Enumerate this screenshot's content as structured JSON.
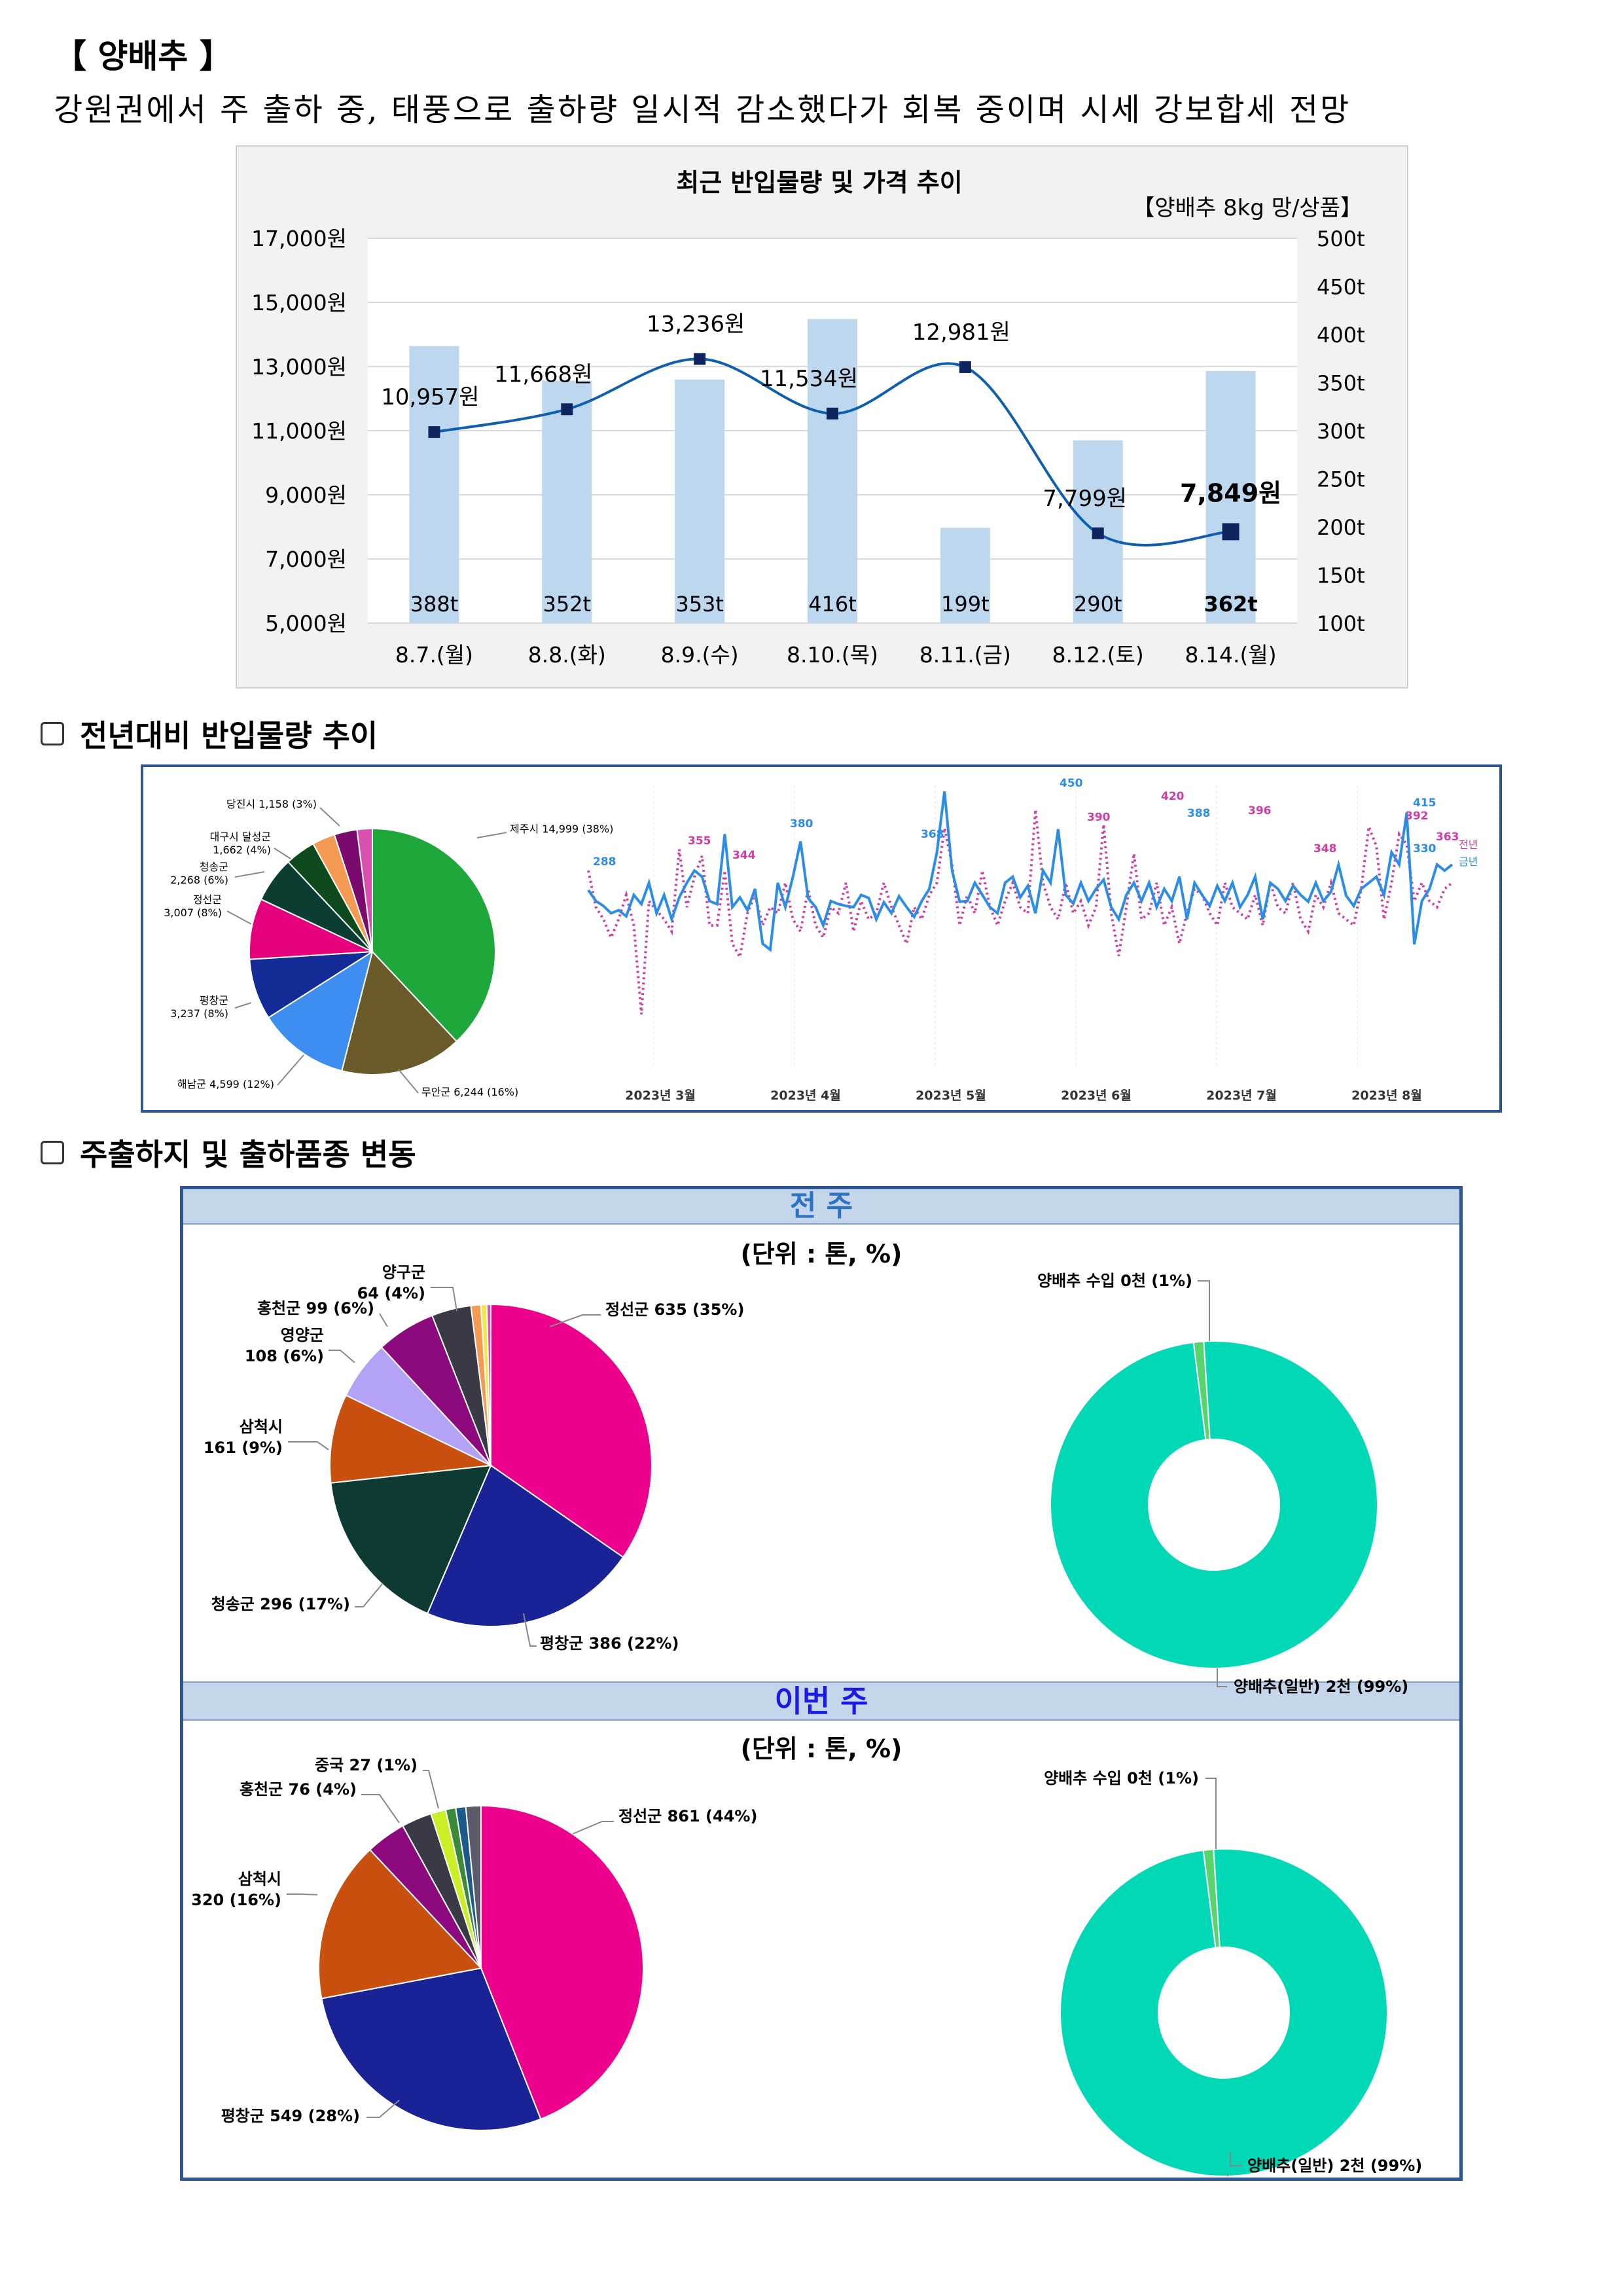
{
  "header": {
    "title": "【 양배추 】",
    "summary": "강원권에서 주 출하 중, 태풍으로 출하량 일시적 감소했다가 회복 중이며 시세 강보합세 전망"
  },
  "chart_data": [
    {
      "type": "bar+line",
      "title": "최근 반입물량 및 가격 추이",
      "subtitle": "【양배추 8kg 망/상품】",
      "categories": [
        "8.7.(월)",
        "8.8.(화)",
        "8.9.(수)",
        "8.10.(목)",
        "8.11.(금)",
        "8.12.(토)",
        "8.14.(월)"
      ],
      "bar_series": {
        "values": [
          388,
          352,
          353,
          416,
          199,
          290,
          362
        ],
        "labels": [
          "388t",
          "352t",
          "353t",
          "416t",
          "199t",
          "290t",
          "362t"
        ],
        "color": "#bdd7ee"
      },
      "line_series": {
        "values": [
          10957,
          11668,
          13236,
          11534,
          12981,
          7799,
          7849
        ],
        "labels": [
          "10,957원",
          "11,668원",
          "13,236원",
          "11,534원",
          "12,981원",
          "7,799원",
          "7,849원"
        ],
        "color": "#0f5fb0",
        "marker_color": "#0f2560"
      },
      "y_left": {
        "range": [
          5000,
          17000
        ],
        "ticks": [
          "17,000원",
          "15,000원",
          "13,000원",
          "11,000원",
          "9,000원",
          "7,000원",
          "5,000원"
        ]
      },
      "y_right": {
        "range": [
          100,
          500
        ],
        "ticks": [
          "500t",
          "450t",
          "400t",
          "350t",
          "300t",
          "250t",
          "200t",
          "150t",
          "100t"
        ]
      }
    },
    {
      "type": "pie",
      "slices": [
        {
          "label": "제주시 14,999 (38%)",
          "value": 38,
          "color": "#1ea83c"
        },
        {
          "label": "무안군 6,244 (16%)",
          "value": 16,
          "color": "#6b5a2a"
        },
        {
          "label": "해남군 4,599 (12%)",
          "value": 12,
          "color": "#3d8ef0"
        },
        {
          "label": "평창군 3,237 (8%)",
          "value": 8,
          "color": "#132b96"
        },
        {
          "label": "정선군 3,007 (8%)",
          "value": 8,
          "color": "#e6007e"
        },
        {
          "label": "청송군 2,268 (6%)",
          "value": 6,
          "color": "#0b3d33"
        },
        {
          "label": "대구시 달성군 1,662 (4%)",
          "value": 4,
          "color": "#0f4a1e"
        },
        {
          "label": "당진시 1,158 (3%)",
          "value": 3,
          "color": "#f59a52"
        },
        {
          "label": "",
          "value": 3,
          "color": "#7a0a6e"
        },
        {
          "label": "",
          "value": 2,
          "color": "#d94fb0"
        }
      ]
    },
    {
      "type": "line",
      "x_labels": [
        "2023년 3월",
        "2023년 4월",
        "2023년 5월",
        "2023년 6월",
        "2023년 7월",
        "2023년 8월"
      ],
      "series": [
        {
          "name": "금년",
          "color": "#2a8ee8",
          "values": [
            288,
            270,
            262,
            250,
            255,
            245,
            280,
            265,
            300,
            250,
            280,
            240,
            276,
            300,
            320,
            310,
            270,
            265,
            380,
            260,
            276,
            255,
            290,
            200,
            190,
            300,
            260,
            310,
            368,
            275,
            260,
            230,
            270,
            265,
            262,
            260,
            280,
            275,
            240,
            268,
            250,
            278,
            260,
            244,
            270,
            290,
            350,
            450,
            320,
            269,
            270,
            300,
            280,
            260,
            250,
            300,
            310,
            276,
            295,
            250,
            320,
            300,
            388,
            280,
            266,
            300,
            270,
            290,
            305,
            260,
            240,
            280,
            300,
            270,
            300,
            260,
            290,
            270,
            310,
            240,
            300,
            280,
            262,
            295,
            270,
            300,
            260,
            280,
            310,
            240,
            300,
            290,
            270,
            295,
            280,
            269,
            300,
            270,
            285,
            330,
            279,
            262,
            290,
            300,
            310,
            280,
            350,
            330,
            415,
            199,
            270,
            290,
            330,
            320,
            330
          ],
          "labels": [
            "288",
            "380",
            "368",
            "450",
            "388",
            "415",
            "330"
          ]
        },
        {
          "name": "전년",
          "color": "#d63aa6",
          "values": [
            320,
            260,
            240,
            210,
            240,
            280,
            230,
            84,
            270,
            255,
            240,
            220,
            355,
            260,
            310,
            344,
            230,
            230,
            320,
            200,
            178,
            250,
            280,
            230,
            260,
            250,
            300,
            240,
            220,
            290,
            230,
            210,
            260,
            250,
            300,
            220,
            270,
            240,
            250,
            300,
            260,
            230,
            200,
            260,
            240,
            280,
            300,
            390,
            330,
            230,
            280,
            250,
            320,
            260,
            230,
            270,
            300,
            260,
            250,
            420,
            300,
            260,
            240,
            300,
            250,
            270,
            230,
            260,
            396,
            250,
            180,
            260,
            348,
            240,
            250,
            300,
            230,
            260,
            200,
            250,
            290,
            280,
            250,
            230,
            300,
            260,
            250,
            240,
            280,
            230,
            300,
            260,
            250,
            300,
            240,
            220,
            280,
            260,
            300,
            250,
            240,
            230,
            290,
            392,
            360,
            240,
            300,
            380,
            363,
            270,
            300,
            270,
            260,
            290,
            300
          ],
          "labels": [
            "355",
            "344",
            "390",
            "420",
            "396",
            "348",
            "392",
            "363"
          ]
        }
      ]
    },
    {
      "type": "pie",
      "group": "전 주",
      "unit": "(단위 : 톤, %)",
      "slices": [
        {
          "label": "정선군 635 (35%)",
          "value": 35,
          "color": "#ec008c"
        },
        {
          "label": "평창군 386 (22%)",
          "value": 22,
          "color": "#1a2396"
        },
        {
          "label": "청송군 296 (17%)",
          "value": 17,
          "color": "#0d3b34"
        },
        {
          "label": "삼척시 161 (9%)",
          "value": 9,
          "color": "#c9500e"
        },
        {
          "label": "영양군 108 (6%)",
          "value": 6,
          "color": "#b4a2f7"
        },
        {
          "label": "홍천군 99 (6%)",
          "value": 6,
          "color": "#8c0a7e"
        },
        {
          "label": "양구군 64 (4%)",
          "value": 4,
          "color": "#3a3a46"
        },
        {
          "label": "",
          "value": 1,
          "color": "#f59a52"
        },
        {
          "label": "",
          "value": 0.6,
          "color": "#f3e84a"
        },
        {
          "label": "",
          "value": 0.4,
          "color": "#e84db3"
        }
      ]
    },
    {
      "type": "pie",
      "group": "전 주",
      "donut": true,
      "slices": [
        {
          "label": "양배추(일반) 2천 (99%)",
          "value": 99,
          "color": "#00d8b6"
        },
        {
          "label": "양배추 수입 0천 (1%)",
          "value": 1,
          "color": "#57d46a"
        }
      ]
    },
    {
      "type": "pie",
      "group": "이번 주",
      "unit": "(단위 : 톤, %)",
      "slices": [
        {
          "label": "정선군 861 (44%)",
          "value": 44,
          "color": "#ec008c"
        },
        {
          "label": "평창군 549 (28%)",
          "value": 28,
          "color": "#1a2396"
        },
        {
          "label": "삼척시 320 (16%)",
          "value": 16,
          "color": "#c9500e"
        },
        {
          "label": "홍천군 76 (4%)",
          "value": 4,
          "color": "#8c0a7e"
        },
        {
          "label": "",
          "value": 3,
          "color": "#3a3a46"
        },
        {
          "label": "중국 27 (1%)",
          "value": 1.5,
          "color": "#c9f026"
        },
        {
          "label": "",
          "value": 1,
          "color": "#3a8a3a"
        },
        {
          "label": "",
          "value": 1,
          "color": "#1c5a8a"
        },
        {
          "label": "",
          "value": 1.5,
          "color": "#5a5a6a"
        }
      ]
    },
    {
      "type": "pie",
      "group": "이번 주",
      "donut": true,
      "slices": [
        {
          "label": "양배추(일반) 2천 (99%)",
          "value": 99,
          "color": "#00d8b6"
        },
        {
          "label": "양배추 수입 0천 (1%)",
          "value": 1,
          "color": "#57d46a"
        }
      ]
    }
  ],
  "sections": {
    "yoy": "전년대비 반입물량 추이",
    "origin": "주출하지 및 출하품종 변동"
  },
  "bands": {
    "prev_week": "전 주",
    "this_week": "이번 주",
    "unit_text": "(단위 : 톤, %)"
  },
  "colors": {
    "box_border": "#2e5597",
    "band_bg": "#c5d5ea",
    "prev_week_title": "#2e74c4",
    "this_week_title": "#1a1ae6"
  }
}
